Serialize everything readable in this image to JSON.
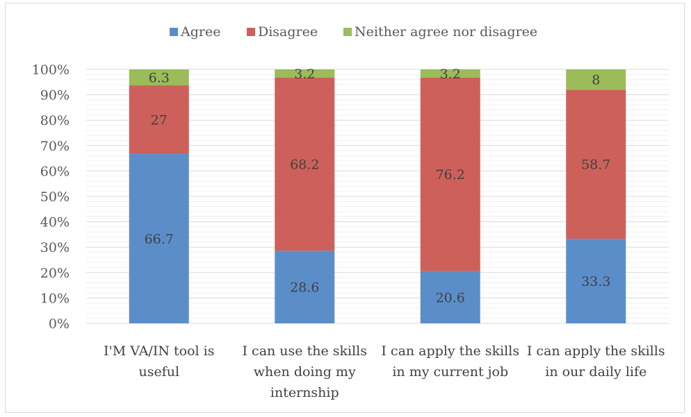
{
  "chart_data": {
    "type": "bar",
    "stacked": true,
    "stack_mode": "percent",
    "categories": [
      [
        "I'M VA/IN tool is",
        "useful"
      ],
      [
        "I can use the skills",
        "when doing my",
        "internship"
      ],
      [
        "I can apply the skills",
        "in my current job"
      ],
      [
        "I can apply the skills",
        "in our daily life"
      ]
    ],
    "series": [
      {
        "name": "Agree",
        "color": "#5b8ec9",
        "values": [
          66.7,
          28.6,
          20.6,
          33.3
        ]
      },
      {
        "name": "Disagree",
        "color": "#cd605a",
        "values": [
          27,
          68.2,
          76.2,
          58.7
        ]
      },
      {
        "name": "Neither agree nor disagree",
        "color": "#9cbb59",
        "values": [
          6.3,
          3.2,
          3.2,
          8
        ]
      }
    ],
    "y_ticks": [
      "0%",
      "10%",
      "20%",
      "30%",
      "40%",
      "50%",
      "60%",
      "70%",
      "80%",
      "90%",
      "100%"
    ],
    "ylim": [
      0,
      100
    ],
    "grid": true,
    "legend_position": "top",
    "title": "",
    "xlabel": "",
    "ylabel": ""
  }
}
